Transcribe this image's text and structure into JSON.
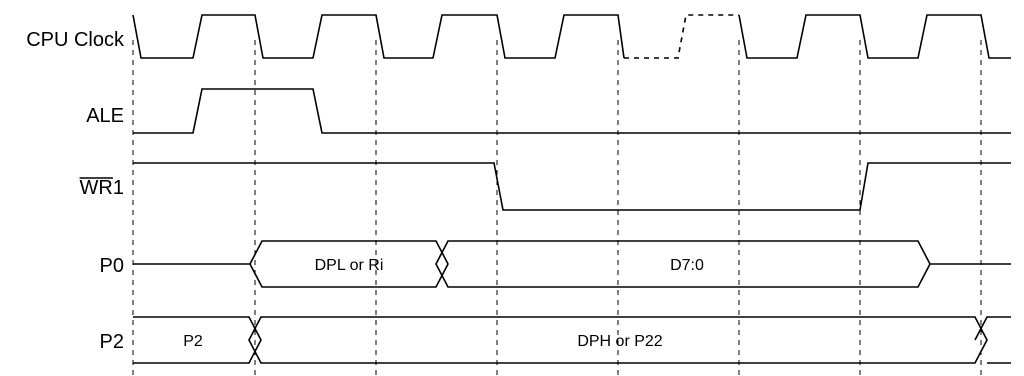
{
  "signals": {
    "cpu_clock": "CPU Clock",
    "ale": "ALE",
    "wr1_bar": "WR",
    "wr1_num": "1",
    "p0": "P0",
    "p2": "P2"
  },
  "buses": {
    "p0_addr": "DPL or Ri",
    "p0_data": "D7:0",
    "p2_prev": "P2",
    "p2_addr": "DPH or P22"
  }
}
